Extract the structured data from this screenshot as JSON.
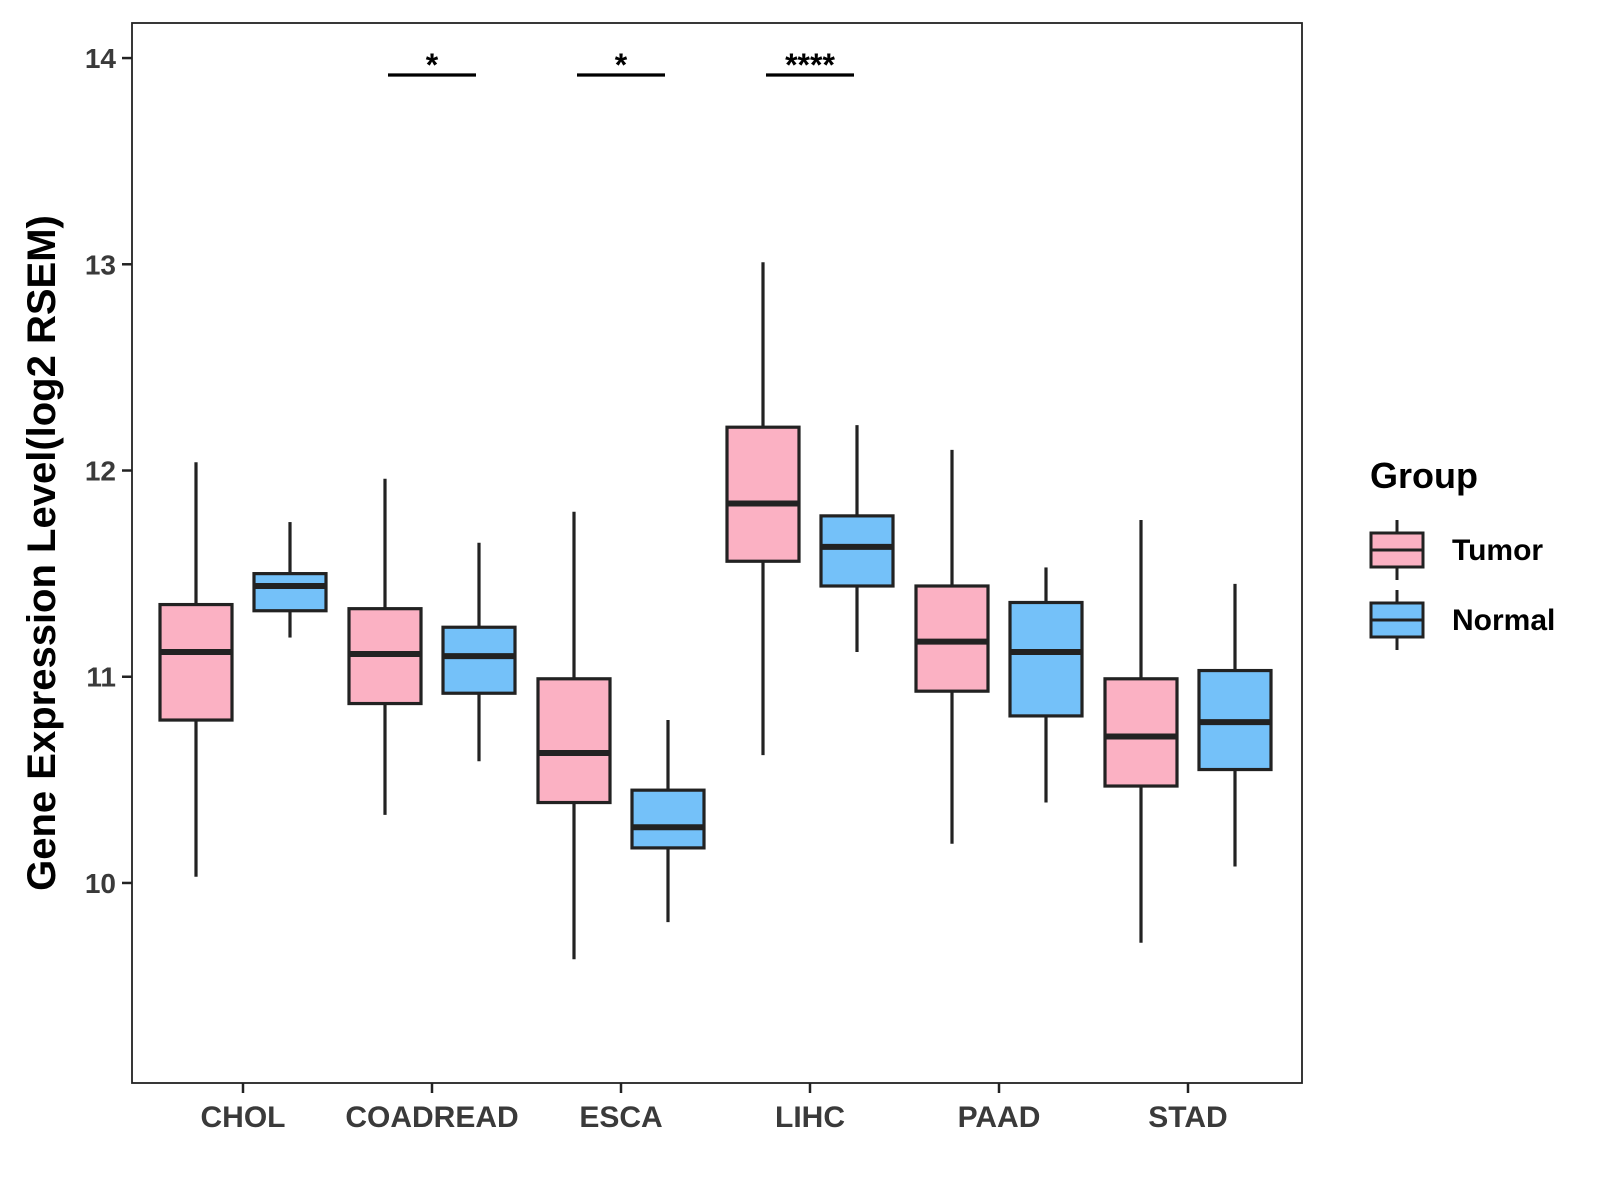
{
  "chart_data": {
    "type": "boxplot",
    "title": "",
    "xlabel": "",
    "ylabel": "Gene Expression Level(log2 RSEM)",
    "ylim": [
      9.03,
      14.17
    ],
    "yticks": [
      10,
      11,
      12,
      13,
      14
    ],
    "ytick_labels": [
      "10",
      "11",
      "12",
      "13",
      "14"
    ],
    "categories": [
      "CHOL",
      "COADREAD",
      "ESCA",
      "LIHC",
      "PAAD",
      "STAD"
    ],
    "legend": {
      "title": "Group",
      "placement": "right",
      "entries": [
        {
          "name": "Tumor",
          "color": "#FBB1C3"
        },
        {
          "name": "Normal",
          "color": "#74C1F9"
        }
      ]
    },
    "series": [
      {
        "name": "Tumor",
        "color": "#FBB1C3",
        "boxes": [
          {
            "category": "CHOL",
            "whisker_low": 10.03,
            "q1": 10.79,
            "median": 11.12,
            "q3": 11.35,
            "whisker_high": 12.04
          },
          {
            "category": "COADREAD",
            "whisker_low": 10.33,
            "q1": 10.87,
            "median": 11.11,
            "q3": 11.33,
            "whisker_high": 11.96
          },
          {
            "category": "ESCA",
            "whisker_low": 9.63,
            "q1": 10.39,
            "median": 10.63,
            "q3": 10.99,
            "whisker_high": 11.8
          },
          {
            "category": "LIHC",
            "whisker_low": 10.62,
            "q1": 11.56,
            "median": 11.84,
            "q3": 12.21,
            "whisker_high": 13.01
          },
          {
            "category": "PAAD",
            "whisker_low": 10.19,
            "q1": 10.93,
            "median": 11.17,
            "q3": 11.44,
            "whisker_high": 12.1
          },
          {
            "category": "STAD",
            "whisker_low": 9.71,
            "q1": 10.47,
            "median": 10.71,
            "q3": 10.99,
            "whisker_high": 11.76
          }
        ]
      },
      {
        "name": "Normal",
        "color": "#74C1F9",
        "boxes": [
          {
            "category": "CHOL",
            "whisker_low": 11.19,
            "q1": 11.32,
            "median": 11.44,
            "q3": 11.5,
            "whisker_high": 11.75
          },
          {
            "category": "COADREAD",
            "whisker_low": 10.59,
            "q1": 10.92,
            "median": 11.1,
            "q3": 11.24,
            "whisker_high": 11.65
          },
          {
            "category": "ESCA",
            "whisker_low": 9.81,
            "q1": 10.17,
            "median": 10.27,
            "q3": 10.45,
            "whisker_high": 10.79
          },
          {
            "category": "LIHC",
            "whisker_low": 11.12,
            "q1": 11.44,
            "median": 11.63,
            "q3": 11.78,
            "whisker_high": 12.22
          },
          {
            "category": "PAAD",
            "whisker_low": 10.39,
            "q1": 10.81,
            "median": 11.12,
            "q3": 11.36,
            "whisker_high": 11.53
          },
          {
            "category": "STAD",
            "whisker_low": 10.08,
            "q1": 10.55,
            "median": 10.78,
            "q3": 11.03,
            "whisker_high": 11.45
          }
        ]
      }
    ],
    "annotations": [
      {
        "category": "COADREAD",
        "label": "*"
      },
      {
        "category": "ESCA",
        "label": "*"
      },
      {
        "category": "LIHC",
        "label": "****"
      }
    ]
  }
}
